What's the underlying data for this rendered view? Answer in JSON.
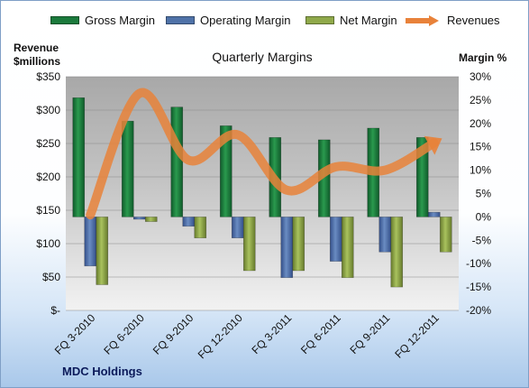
{
  "legend": {
    "gross_margin": "Gross Margin",
    "operating_margin": "Operating Margin",
    "net_margin": "Net Margin",
    "revenues": "Revenues"
  },
  "colors": {
    "gross_margin": "#1b7a3c",
    "operating_margin": "#4f72a8",
    "net_margin": "#8fa94a",
    "revenues": "#e8823a",
    "plot_bg_top": "#a9a9a9",
    "plot_bg_bottom": "#efefef"
  },
  "chart_data": {
    "type": "bar",
    "title": "Quarterly Margins",
    "ylabel_left": "Revenue $millions",
    "ylabel_right": "Margin %",
    "company": "MDC Holdings",
    "categories": [
      "FQ 3-2010",
      "FQ 6-2010",
      "FQ 9-2010",
      "FQ 12-2010",
      "FQ 3-2011",
      "FQ 6-2011",
      "FQ 9-2011",
      "FQ 12-2011"
    ],
    "y_left_ticks": [
      "$-",
      "$50",
      "$100",
      "$150",
      "$200",
      "$250",
      "$300",
      "$350"
    ],
    "y_left_range": [
      0,
      350
    ],
    "y_right_ticks": [
      "-20%",
      "-15%",
      "-10%",
      "-5%",
      "0%",
      "5%",
      "10%",
      "15%",
      "20%",
      "25%",
      "30%"
    ],
    "y_right_range": [
      -20,
      30
    ],
    "grid": true,
    "legend_position": "top",
    "series": [
      {
        "name": "Gross Margin",
        "axis": "right",
        "type": "bar",
        "values": [
          25.5,
          20.5,
          23.5,
          19.5,
          17.0,
          16.5,
          19.0,
          17.0
        ]
      },
      {
        "name": "Operating Margin",
        "axis": "right",
        "type": "bar",
        "values": [
          -10.5,
          -0.5,
          -2.0,
          -4.5,
          -13.0,
          -9.5,
          -7.5,
          1.0
        ]
      },
      {
        "name": "Net Margin",
        "axis": "right",
        "type": "bar",
        "values": [
          -14.5,
          -1.0,
          -4.5,
          -11.5,
          -11.5,
          -13.0,
          -15.0,
          -7.5
        ]
      },
      {
        "name": "Revenues",
        "axis": "left",
        "type": "line",
        "values": [
          143,
          325,
          225,
          263,
          180,
          215,
          210,
          251
        ]
      }
    ]
  }
}
